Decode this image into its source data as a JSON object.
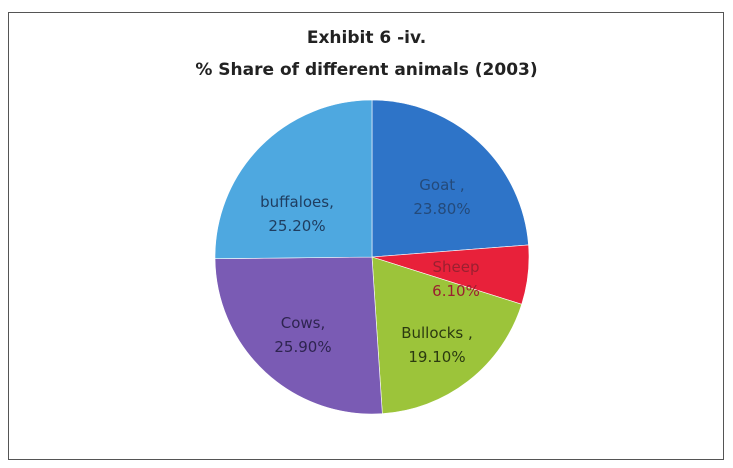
{
  "chart_data": {
    "type": "pie",
    "title": "Exhibit 6 -iv.",
    "subtitle": "% Share of different animals (2003)",
    "slices": [
      {
        "name": "Goat",
        "label_line1": "Goat ,",
        "label_line2": "23.80%",
        "value": 23.8,
        "color": "#2e74c8",
        "text_color": "#244a7a"
      },
      {
        "name": "Sheep",
        "label_line1": "Sheep",
        "label_line2": "6.10%",
        "value": 6.1,
        "color": "#e8213a",
        "text_color": "#9a2030"
      },
      {
        "name": "Bullocks",
        "label_line1": "Bullocks ,",
        "label_line2": "19.10%",
        "value": 19.1,
        "color": "#9cc43a",
        "text_color": "#2b3a10"
      },
      {
        "name": "Cows",
        "label_line1": "Cows,",
        "label_line2": "25.90%",
        "value": 25.9,
        "color": "#7a5bb4",
        "text_color": "#2e2450"
      },
      {
        "name": "buffaloes",
        "label_line1": "buffaloes,",
        "label_line2": "25.20%",
        "value": 25.2,
        "color": "#4ea8e0",
        "text_color": "#1f3d60"
      }
    ]
  }
}
